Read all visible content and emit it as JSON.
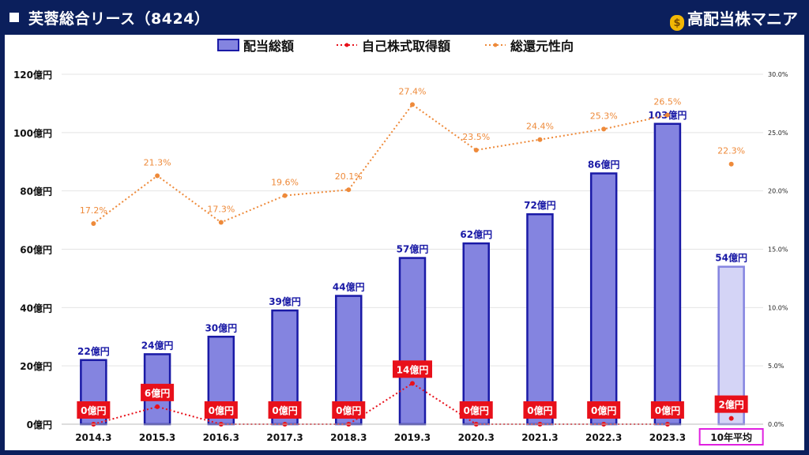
{
  "header": {
    "title": "芙蓉総合リース（8424）",
    "brand": "高配当株マニア",
    "brand_icon": "money-bag-icon"
  },
  "chart_data": {
    "type": "bar",
    "categories": [
      "2014.3",
      "2015.3",
      "2016.3",
      "2017.3",
      "2018.3",
      "2019.3",
      "2020.3",
      "2021.3",
      "2022.3",
      "2023.3",
      "10年平均"
    ],
    "series": [
      {
        "name": "配当総額",
        "kind": "bar",
        "axis": "left",
        "unit": "億円",
        "values": [
          22,
          24,
          30,
          39,
          44,
          57,
          62,
          72,
          86,
          103,
          54
        ],
        "labels": [
          "22億円",
          "24億円",
          "30億円",
          "39億円",
          "44億円",
          "57億円",
          "62億円",
          "72億円",
          "86億円",
          "103億円",
          "54億円"
        ]
      },
      {
        "name": "自己株式取得額",
        "kind": "dotted-line",
        "axis": "left",
        "unit": "億円",
        "values": [
          0,
          6,
          0,
          0,
          0,
          14,
          0,
          0,
          0,
          0,
          2
        ],
        "labels": [
          "0億円",
          "6億円",
          "0億円",
          "0億円",
          "0億円",
          "14億円",
          "0億円",
          "0億円",
          "0億円",
          "0億円",
          "2億円"
        ]
      },
      {
        "name": "総還元性向",
        "kind": "dotted-line",
        "axis": "right",
        "unit": "%",
        "values": [
          17.2,
          21.3,
          17.3,
          19.6,
          20.1,
          27.4,
          23.5,
          24.4,
          25.3,
          26.5,
          22.3
        ],
        "labels": [
          "17.2%",
          "21.3%",
          "17.3%",
          "19.6%",
          "20.1%",
          "27.4%",
          "23.5%",
          "24.4%",
          "25.3%",
          "26.5%",
          "22.3%"
        ]
      }
    ],
    "y_left": {
      "min": 0,
      "max": 120,
      "ticks": [
        "0億円",
        "20億円",
        "40億円",
        "60億円",
        "80億円",
        "100億円",
        "120億円"
      ]
    },
    "y_right": {
      "min": 0,
      "max": 30,
      "ticks": [
        "0.0%",
        "5.0%",
        "10.0%",
        "15.0%",
        "20.0%",
        "25.0%",
        "30.0%"
      ]
    },
    "grid": true,
    "legend_position": "top-center",
    "colors": {
      "bar": "#8484e0",
      "bar_border": "#1a1aa6",
      "bar_avg": "#d4d4f6",
      "buyback": "#e8101a",
      "payout": "#ee8a3a",
      "avg_label_box": "#e020e0"
    }
  }
}
